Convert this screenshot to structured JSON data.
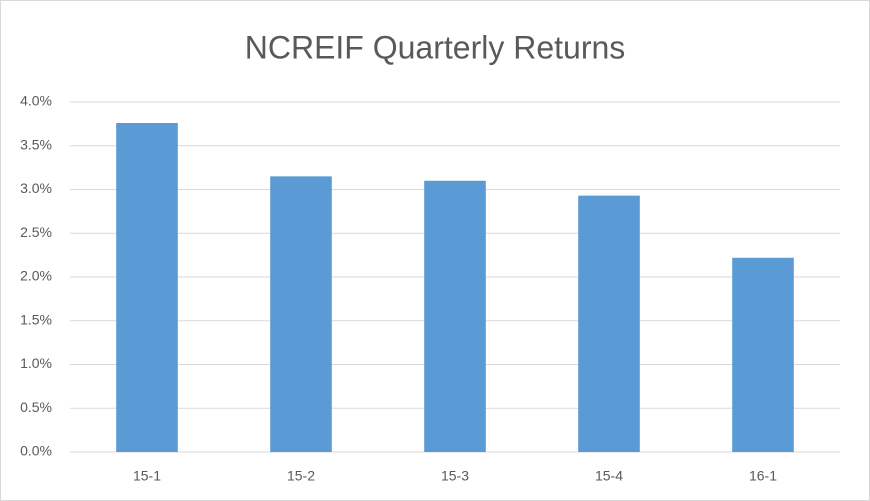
{
  "chart_data": {
    "type": "bar",
    "title": "NCREIF Quarterly Returns",
    "categories": [
      "15-1",
      "15-2",
      "15-3",
      "15-4",
      "16-1"
    ],
    "values": [
      3.76,
      3.15,
      3.1,
      2.93,
      2.22
    ],
    "color": "#5b9bd5",
    "ylim": [
      0,
      4
    ],
    "yticks": [
      {
        "value": 0,
        "label": "0.0%"
      },
      {
        "value": 0.5,
        "label": "0.5%"
      },
      {
        "value": 1,
        "label": "1.0%"
      },
      {
        "value": 1.5,
        "label": "1.5%"
      },
      {
        "value": 2,
        "label": "2.0%"
      },
      {
        "value": 2.5,
        "label": "2.5%"
      },
      {
        "value": 3,
        "label": "3.0%"
      },
      {
        "value": 3.5,
        "label": "3.5%"
      },
      {
        "value": 4,
        "label": "4.0%"
      }
    ],
    "grid": true
  }
}
